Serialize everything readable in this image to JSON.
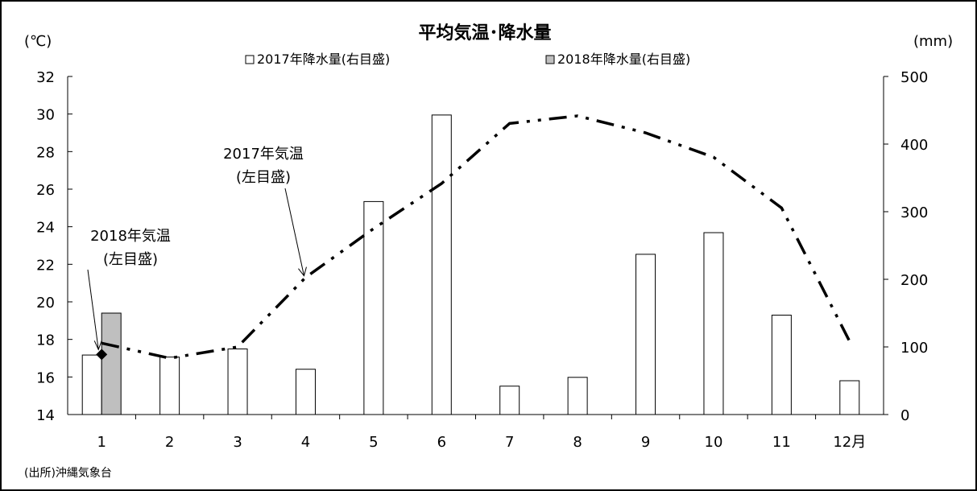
{
  "chart_data": {
    "type": "bar",
    "title": "平均気温･降水量",
    "categories": [
      "1",
      "2",
      "3",
      "4",
      "5",
      "6",
      "7",
      "8",
      "9",
      "10",
      "11",
      "12月"
    ],
    "y_left": {
      "unit_label": "(℃)",
      "ylim": [
        14,
        32
      ],
      "ticks": [
        "14",
        "16",
        "18",
        "20",
        "22",
        "24",
        "26",
        "28",
        "30",
        "32"
      ]
    },
    "y_right": {
      "unit_label": "(mm)",
      "ylim": [
        0,
        500
      ],
      "ticks": [
        "0",
        "100",
        "200",
        "300",
        "400",
        "500"
      ]
    },
    "legend_placement": "top-center",
    "grid": false,
    "series": [
      {
        "name": "2017年降水量(右目盛)",
        "type": "bar",
        "axis": "right",
        "color": "#ffffff",
        "values": [
          88,
          85,
          97,
          67,
          315,
          443,
          42,
          55,
          237,
          269,
          147,
          50
        ]
      },
      {
        "name": "2018年降水量(右目盛)",
        "type": "bar",
        "axis": "right",
        "color": "#bfbfbf",
        "values": [
          150,
          null,
          null,
          null,
          null,
          null,
          null,
          null,
          null,
          null,
          null,
          null
        ]
      },
      {
        "name": "2017年気温",
        "type": "line",
        "axis": "left",
        "style": "dash-dot-dot",
        "color": "#000000",
        "values": [
          17.8,
          17.0,
          17.6,
          21.3,
          23.9,
          26.3,
          29.5,
          29.9,
          29.0,
          27.7,
          25.0,
          17.9
        ]
      },
      {
        "name": "2018年気温",
        "type": "marker",
        "axis": "left",
        "marker": "diamond",
        "color": "#000000",
        "values": [
          17.2,
          null,
          null,
          null,
          null,
          null,
          null,
          null,
          null,
          null,
          null,
          null
        ]
      }
    ],
    "annotations": [
      {
        "id": "temp2017",
        "lines": [
          "2017年気温",
          "(左目盛)"
        ],
        "target_series": 2,
        "target_index": 3
      },
      {
        "id": "temp2018",
        "lines": [
          "2018年気温",
          "(左目盛)"
        ],
        "target_series": 3,
        "target_index": 0
      }
    ],
    "source_note": "(出所)沖縄気象台"
  }
}
